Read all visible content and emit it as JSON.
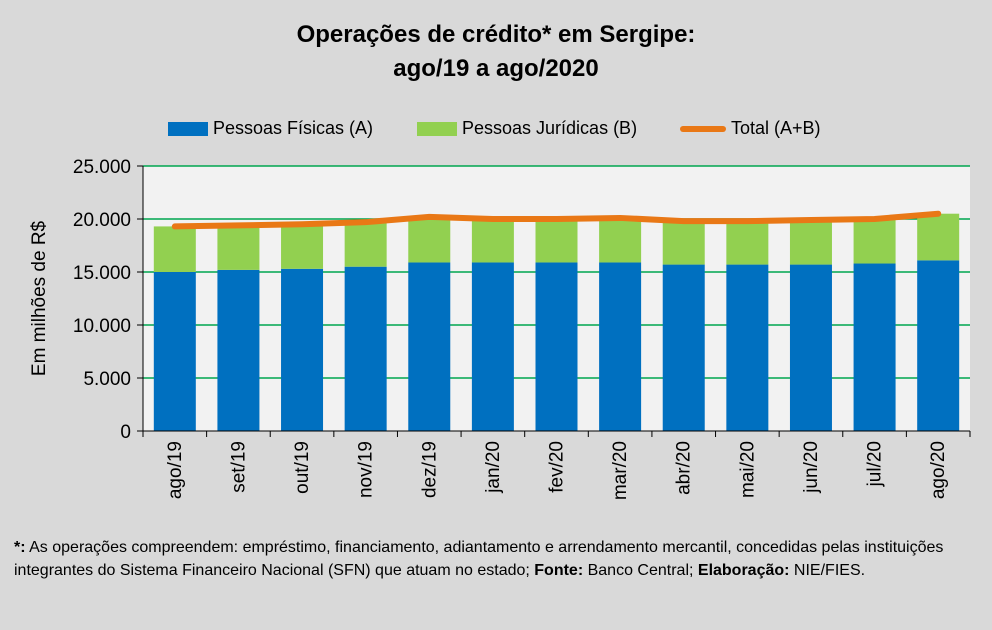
{
  "chart_data": {
    "type": "bar",
    "title_line1": "Operações de crédito* em Sergipe:",
    "title_line2": "ago/19 a ago/2020",
    "ylabel": "Em milhões de R$",
    "ylim": [
      0,
      25000
    ],
    "yticks": [
      "0",
      "5.000",
      "10.000",
      "15.000",
      "20.000",
      "25.000"
    ],
    "categories": [
      "ago/19",
      "set/19",
      "out/19",
      "nov/19",
      "dez/19",
      "jan/20",
      "fev/20",
      "mar/20",
      "abr/20",
      "mai/20",
      "jun/20",
      "jul/20",
      "ago/20"
    ],
    "series": [
      {
        "name": "Pessoas Físicas (A)",
        "kind": "bar",
        "color": "#0070c0",
        "values": [
          15000,
          15200,
          15300,
          15500,
          15900,
          15900,
          15900,
          15900,
          15700,
          15700,
          15700,
          15800,
          16100
        ]
      },
      {
        "name": "Pessoas Jurídicas (B)",
        "kind": "bar",
        "color": "#92d050",
        "values": [
          4300,
          4200,
          4200,
          4200,
          4300,
          4100,
          4100,
          4200,
          4100,
          4100,
          4200,
          4200,
          4400
        ]
      },
      {
        "name": "Total (A+B)",
        "kind": "line",
        "color": "#e97816",
        "values": [
          19300,
          19400,
          19500,
          19700,
          20200,
          20000,
          20000,
          20100,
          19800,
          19800,
          19900,
          20000,
          20500
        ]
      }
    ],
    "grid": true,
    "gridColor": "#00a650",
    "plotBackground": "#f2f2f2",
    "legend": "top"
  },
  "footnote": {
    "star": "*:",
    "text1": " As operações compreendem: empréstimo, financiamento, adiantamento e arrendamento mercantil, concedidas pelas instituições integrantes do Sistema Financeiro Nacional (SFN) que atuam no estado; ",
    "fonte_label": "Fonte:",
    "fonte_text": " Banco Central; ",
    "elab_label": "Elaboração:",
    "elab_text": " NIE/FIES."
  }
}
